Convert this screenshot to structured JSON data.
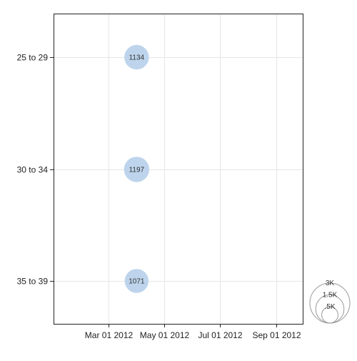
{
  "chart_data": {
    "type": "scatter",
    "subtype": "bubble",
    "title": "",
    "xlabel": "",
    "ylabel": "",
    "x_axis": {
      "kind": "date",
      "range": [
        "2012-01-01",
        "2012-09-30"
      ],
      "tick_values": [
        "2012-03-01",
        "2012-05-01",
        "2012-07-01",
        "2012-09-01"
      ],
      "tick_labels": [
        "Mar 01 2012",
        "May 01 2012",
        "Jul 01 2012",
        "Sep 01 2012"
      ]
    },
    "y_axis": {
      "kind": "category",
      "categories": [
        "25 to 29",
        "30 to 34",
        "35 to 39"
      ]
    },
    "grid": true,
    "legend": {
      "placement": "bottom-right",
      "type": "size",
      "entries": [
        {
          "label": "3K",
          "value": 3000
        },
        {
          "label": "1.5K",
          "value": 1500
        },
        {
          "label": ".5K",
          "value": 500
        }
      ]
    },
    "points": [
      {
        "x": "2012-04-01",
        "y": "25 to 29",
        "value": 1134,
        "label": "1134"
      },
      {
        "x": "2012-04-01",
        "y": "30 to 34",
        "value": 1197,
        "label": "1197"
      },
      {
        "x": "2012-04-01",
        "y": "35 to 39",
        "value": 1071,
        "label": "1071"
      }
    ],
    "colors": {
      "bubble_fill": "#bdd4ec",
      "grid": "#e6e6e6",
      "axis": "#222222",
      "legend_stroke": "#999999"
    }
  }
}
